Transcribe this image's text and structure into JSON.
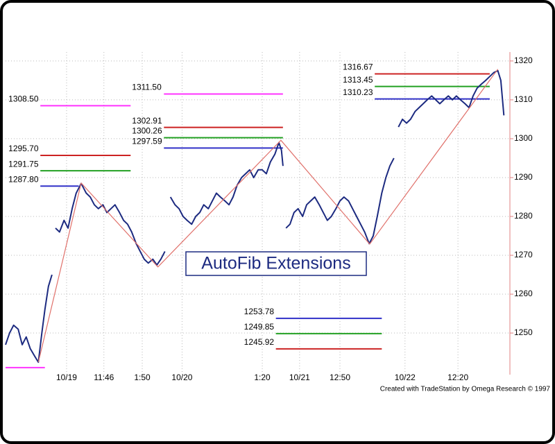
{
  "chart_data": {
    "type": "line",
    "title": "AutoFib Extensions",
    "credit": "Created with TradeStation by Omega Research © 1997",
    "xlim": [
      0,
      100
    ],
    "ylim": [
      1239.3,
      1322.3
    ],
    "yticks": [
      1250,
      1260,
      1270,
      1280,
      1290,
      1300,
      1310,
      1320
    ],
    "xticks": [
      {
        "value": 12.1,
        "label": "10/19"
      },
      {
        "value": 19.5,
        "label": "11:46"
      },
      {
        "value": 27.1,
        "label": "1:50"
      },
      {
        "value": 35.0,
        "label": "10/20"
      },
      {
        "value": 50.9,
        "label": "1:20"
      },
      {
        "value": 58.3,
        "label": "10/21"
      },
      {
        "value": 66.3,
        "label": "12:50"
      },
      {
        "value": 79.2,
        "label": "10/22"
      },
      {
        "value": 89.7,
        "label": "12:20"
      }
    ],
    "grid": true,
    "series": [
      {
        "color": "#1c2a80",
        "x": [
          0,
          0.8,
          1.6,
          2.5,
          3.3,
          4.1,
          4.9,
          5.8,
          6.5,
          7.2,
          7.8,
          8.5,
          9.2,
          9.6,
          9.9,
          10.7,
          11.6,
          12.4,
          13.2,
          14.0,
          15.0,
          16.0,
          16.8,
          17.6,
          18.4,
          19.3,
          20.1,
          20.9,
          21.7,
          22.6,
          23.4,
          24.2,
          25.0,
          25.9,
          26.7,
          27.5,
          28.3,
          29.2,
          30.0,
          30.8,
          31.6,
          32.3,
          32.7,
          33.6,
          34.4,
          35.2,
          36.0,
          36.9,
          37.7,
          38.5,
          39.3,
          40.2,
          41.0,
          41.8,
          42.6,
          43.5,
          44.3,
          45.1,
          45.9,
          46.8,
          47.6,
          48.4,
          49.2,
          50.1,
          50.9,
          51.7,
          52.5,
          53.4,
          54.2,
          54.7,
          55.0,
          55.3,
          55.6,
          56.4,
          57.2,
          58.0,
          58.9,
          59.7,
          60.5,
          61.3,
          62.2,
          63.0,
          63.8,
          64.6,
          65.5,
          66.3,
          67.1,
          68.0,
          68.8,
          69.6,
          70.4,
          71.2,
          72.1,
          72.9,
          73.7,
          74.6,
          75.4,
          76.2,
          77.0,
          77.5,
          77.9,
          78.7,
          79.5,
          80.3,
          81.2,
          82.0,
          82.8,
          83.6,
          84.5,
          85.3,
          86.1,
          86.9,
          87.8,
          88.6,
          89.4,
          90.2,
          91.1,
          91.9,
          92.7,
          93.5,
          94.3,
          95.2,
          96.0,
          96.8,
          97.6,
          98.2,
          98.8
        ],
        "values": [
          1247,
          1250,
          1252,
          1251,
          1247,
          1249,
          1246,
          1244,
          1242.5,
          1250,
          1256,
          1262,
          1265,
          null,
          1277,
          1276,
          1279,
          1277,
          1282,
          1286,
          1288.5,
          1286,
          1285,
          1283,
          1282,
          1283,
          1281,
          1282,
          1283,
          1281,
          1279,
          1278,
          1276,
          1273,
          1271,
          1269,
          1268,
          1269,
          1267.5,
          1269,
          1271,
          null,
          1285,
          1283,
          1282,
          1280,
          1279,
          1278,
          1280,
          1281,
          1283,
          1282,
          1284,
          1286,
          1285,
          1284,
          1283,
          1285,
          1288,
          1290,
          1291,
          1292,
          1290,
          1292,
          1292,
          1291,
          1294,
          1296,
          1299,
          1297,
          1293,
          null,
          1277,
          1278,
          1281,
          1282,
          1280,
          1283,
          1284,
          1285,
          1283,
          1281,
          1279,
          1280,
          1282,
          1284,
          1285,
          1284,
          1282,
          1280,
          1278,
          1276,
          1273,
          1275,
          1280,
          1286,
          1290,
          1293,
          1295,
          null,
          1303,
          1305,
          1304,
          1305,
          1307,
          1308,
          1309,
          1310,
          1311,
          1310,
          1309,
          1310,
          1311,
          1310,
          1311,
          1310,
          1309,
          1308,
          1311,
          1313,
          1314,
          1315,
          1316,
          1317,
          1317.5,
          1315,
          1306
        ]
      },
      {
        "color": "#e0706a",
        "x": [
          6.5,
          15.0,
          30.2,
          54.6,
          72.2,
          97.6
        ],
        "values": [
          1242.5,
          1288.6,
          1267.0,
          1299.6,
          1272.9,
          1317.9
        ]
      }
    ],
    "levels": [
      {
        "value": 1241.1,
        "color": "#ff33ff",
        "x_range": [
          0,
          7.8
        ]
      },
      {
        "value": 1308.5,
        "label": "1308.50",
        "color": "#ff33ff",
        "x_range": [
          6.9,
          24.8
        ]
      },
      {
        "value": 1295.7,
        "label": "1295.70",
        "color": "#cc2222",
        "x_range": [
          6.9,
          24.8
        ]
      },
      {
        "value": 1291.75,
        "label": "1291.75",
        "color": "#22a022",
        "x_range": [
          6.9,
          24.8
        ]
      },
      {
        "value": 1287.8,
        "label": "1287.80",
        "color": "#3030c8",
        "x_range": [
          6.9,
          14.5
        ]
      },
      {
        "value": 1311.5,
        "label": "1311.50",
        "color": "#ff33ff",
        "x_range": [
          31.4,
          55.0
        ]
      },
      {
        "value": 1302.91,
        "label": "1302.91",
        "color": "#cc2222",
        "x_range": [
          31.4,
          55.0
        ]
      },
      {
        "value": 1300.26,
        "label": "1300.26",
        "color": "#22a022",
        "x_range": [
          31.4,
          55.0
        ]
      },
      {
        "value": 1297.59,
        "label": "1297.59",
        "color": "#3030c8",
        "x_range": [
          31.4,
          55.0
        ]
      },
      {
        "value": 1316.67,
        "label": "1316.67",
        "color": "#cc2222",
        "x_range": [
          73.2,
          96.0
        ]
      },
      {
        "value": 1313.45,
        "label": "1313.45",
        "color": "#22a022",
        "x_range": [
          73.2,
          96.0
        ]
      },
      {
        "value": 1310.23,
        "label": "1310.23",
        "color": "#3030c8",
        "x_range": [
          73.2,
          96.0
        ]
      },
      {
        "value": 1253.78,
        "label": "1253.78",
        "color": "#3030c8",
        "x_range": [
          53.6,
          74.6
        ]
      },
      {
        "value": 1249.85,
        "label": "1249.85",
        "color": "#22a022",
        "x_range": [
          53.6,
          74.6
        ]
      },
      {
        "value": 1245.92,
        "label": "1245.92",
        "color": "#cc2222",
        "x_range": [
          53.6,
          74.6
        ]
      }
    ]
  }
}
